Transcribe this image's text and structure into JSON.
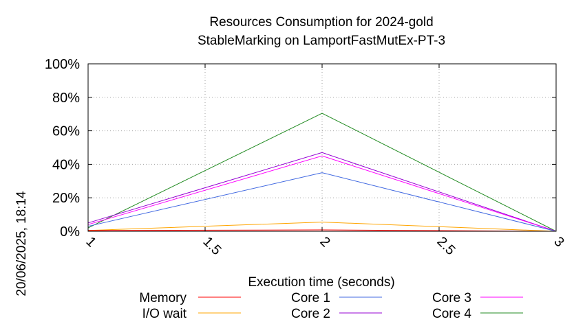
{
  "chart_data": {
    "type": "line",
    "title": "Resources Consumption for 2024-gold",
    "subtitle": "StableMarking on LamportFastMutEx-PT-3",
    "xlabel": "Execution time (seconds)",
    "ylabel": "",
    "xlim": [
      1,
      3
    ],
    "ylim": [
      0,
      100
    ],
    "xticks": [
      1,
      1.5,
      2,
      2.5,
      3
    ],
    "xtick_labels": [
      "1",
      "1.5",
      "2",
      "2.5",
      "3"
    ],
    "yticks": [
      0,
      20,
      40,
      60,
      80,
      100
    ],
    "ytick_labels": [
      "0%",
      "20%",
      "40%",
      "60%",
      "80%",
      "100%"
    ],
    "grid": true,
    "legend_position": "bottom",
    "x": [
      1,
      2,
      3
    ],
    "series": [
      {
        "name": "Memory",
        "color": "#ff0000",
        "values": [
          0.5,
          0.8,
          0.0
        ]
      },
      {
        "name": "I/O wait",
        "color": "#ffa500",
        "values": [
          0.5,
          5.5,
          0.0
        ]
      },
      {
        "name": "Core 1",
        "color": "#4169e1",
        "values": [
          3.0,
          35.0,
          0.0
        ]
      },
      {
        "name": "Core 2",
        "color": "#9400d3",
        "values": [
          5.0,
          47.0,
          0.0
        ]
      },
      {
        "name": "Core 3",
        "color": "#ff00ff",
        "values": [
          4.0,
          45.0,
          0.0
        ]
      },
      {
        "name": "Core 4",
        "color": "#228b22",
        "values": [
          2.0,
          70.5,
          0.0
        ]
      }
    ]
  },
  "timestamp": "20/06/2025, 18:14"
}
